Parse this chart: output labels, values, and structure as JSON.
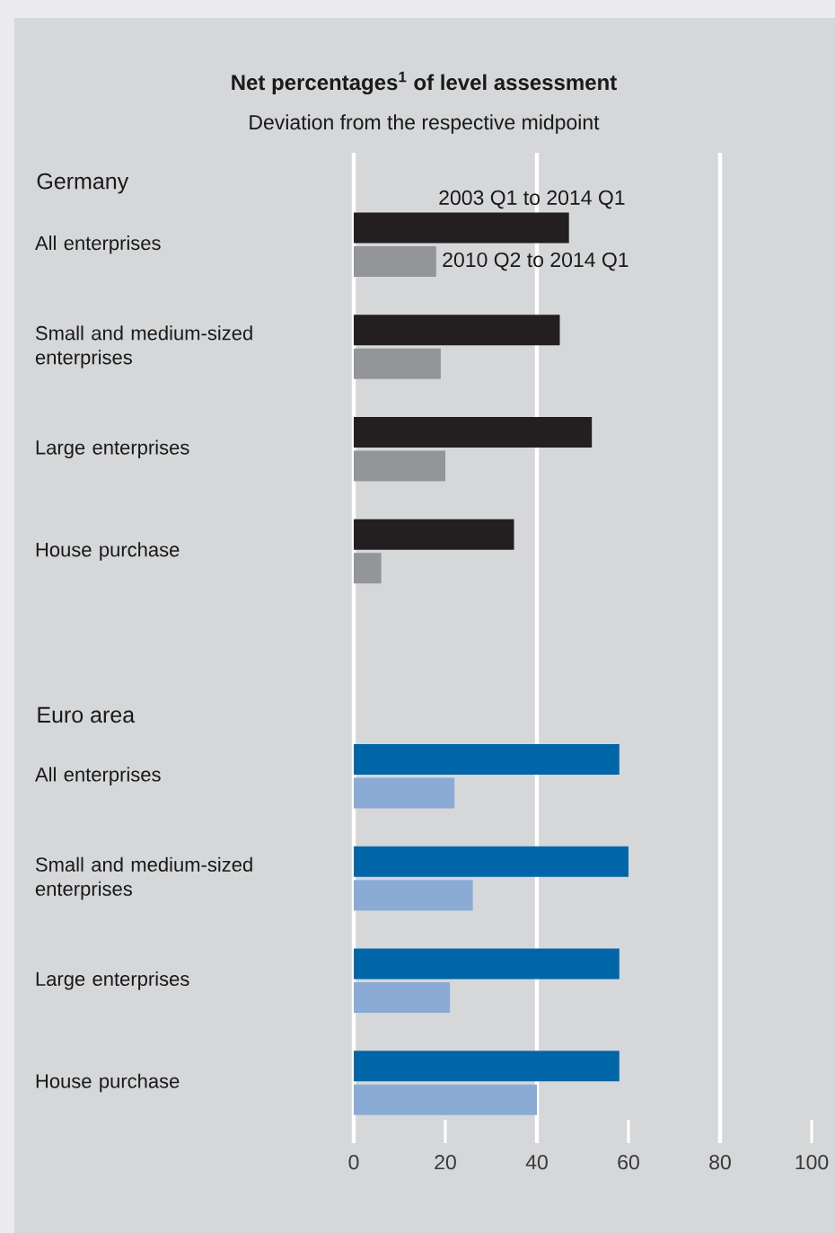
{
  "chart_data": {
    "type": "bar",
    "orientation": "horizontal",
    "title": "Net percentages$^{1}$ of level assessment",
    "subtitle": "Deviation from the respective midpoint",
    "annotations": [
      "Germany",
      "Euro area"
    ],
    "categories": [
      "All enterprises",
      "Small and medium-sized enterprises",
      "Large enterprises",
      "House purchase",
      "All enterprises",
      "Small and medium-sized enterprises",
      "Large enterprises",
      "House purchase"
    ],
    "series": [
      {
        "name": "2003 Q1 to 2014 Q1",
        "colors": [
          "#231f20",
          "#231f20",
          "#231f20",
          "#231f20",
          "#0066a8",
          "#0066a8",
          "#0066a8",
          "#0066a8"
        ],
        "values": [
          47,
          45,
          52,
          35,
          58,
          60,
          58,
          58
        ]
      },
      {
        "name": "2010 Q2 to 2014 Q1",
        "colors": [
          "#939598",
          "#939598",
          "#939598",
          "#939598",
          "#8aabd4",
          "#8aabd4",
          "#8aabd4",
          "#8aabd4"
        ],
        "values": [
          18,
          19,
          20,
          6,
          22,
          26,
          21,
          40
        ]
      }
    ],
    "xlim": [
      0,
      100
    ],
    "xticks": [
      0,
      20,
      40,
      60,
      80,
      100
    ],
    "ref_lines": [
      {
        "axis": "x",
        "value": 40,
        "color": "#ffffff"
      },
      {
        "axis": "x",
        "value": 80,
        "color": "#ffffff"
      }
    ]
  }
}
